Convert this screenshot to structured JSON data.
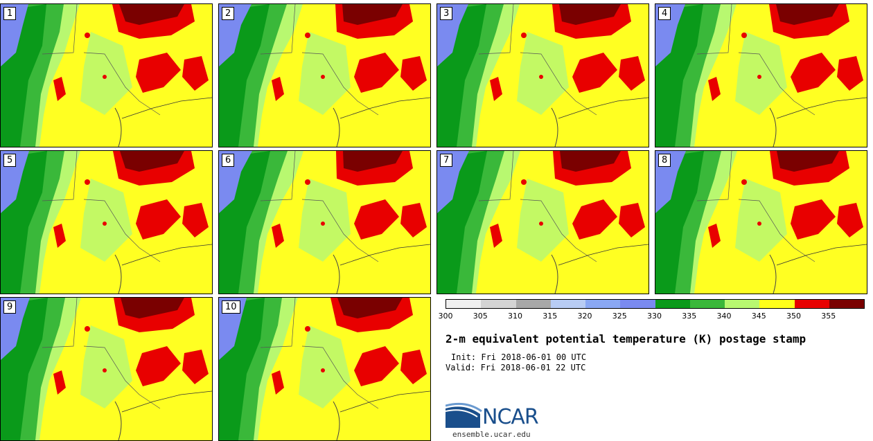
{
  "panels": [
    {
      "label": "1"
    },
    {
      "label": "2"
    },
    {
      "label": "3"
    },
    {
      "label": "4"
    },
    {
      "label": "5"
    },
    {
      "label": "6"
    },
    {
      "label": "7"
    },
    {
      "label": "8"
    },
    {
      "label": "9"
    },
    {
      "label": "10"
    }
  ],
  "colorbar": {
    "colors": [
      "#f0f0f0",
      "#d4d4d4",
      "#a8a8a8",
      "#b8ccf4",
      "#8aa8f4",
      "#7a8af0",
      "#0a9a1a",
      "#3ab83a",
      "#b8f870",
      "#ffff1a",
      "#e80000",
      "#7a0000"
    ],
    "ticks": [
      "300",
      "305",
      "310",
      "315",
      "320",
      "325",
      "330",
      "335",
      "340",
      "345",
      "350",
      "355"
    ]
  },
  "title": "2-m equivalent potential temperature (K) postage stamp",
  "init": "Init: Fri 2018-06-01 00 UTC",
  "valid": "Valid: Fri 2018-06-01 22 UTC",
  "logo": {
    "text": "NCAR",
    "site": "ensemble.ucar.edu"
  }
}
